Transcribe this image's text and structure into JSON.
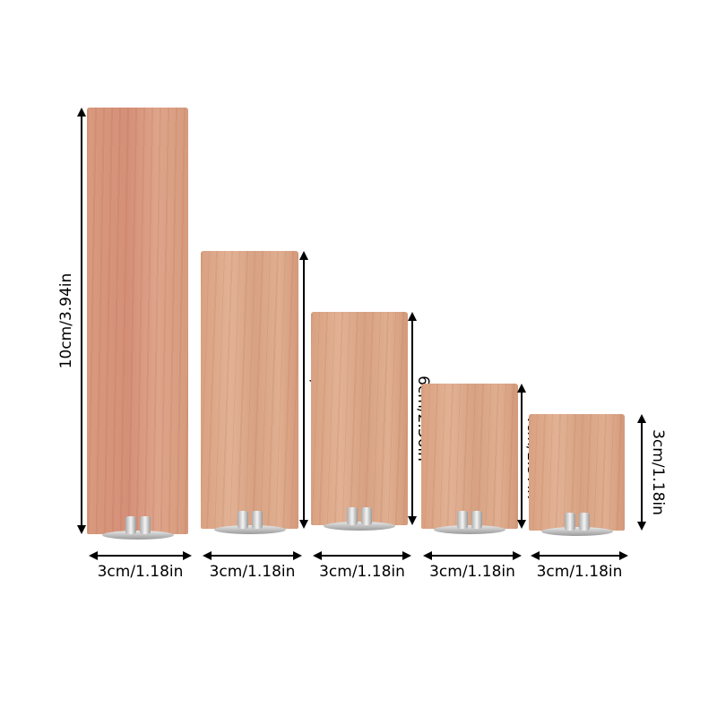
{
  "wicks": [
    {
      "height_label": "10cm/3.94in",
      "width_label": "3cm/1.18in"
    },
    {
      "height_label": "8cm/3.15in",
      "width_label": "3cm/1.18in"
    },
    {
      "height_label": "6cm/2.36in",
      "width_label": "3cm/1.18in"
    },
    {
      "height_label": "4cm/1.57in",
      "width_label": "3cm/1.18in"
    },
    {
      "height_label": "3cm/1.18in",
      "width_label": "3cm/1.18in"
    }
  ],
  "colors": {
    "wood": "#dca488",
    "arrow": "#000000",
    "clip": "#c8c8c8"
  }
}
